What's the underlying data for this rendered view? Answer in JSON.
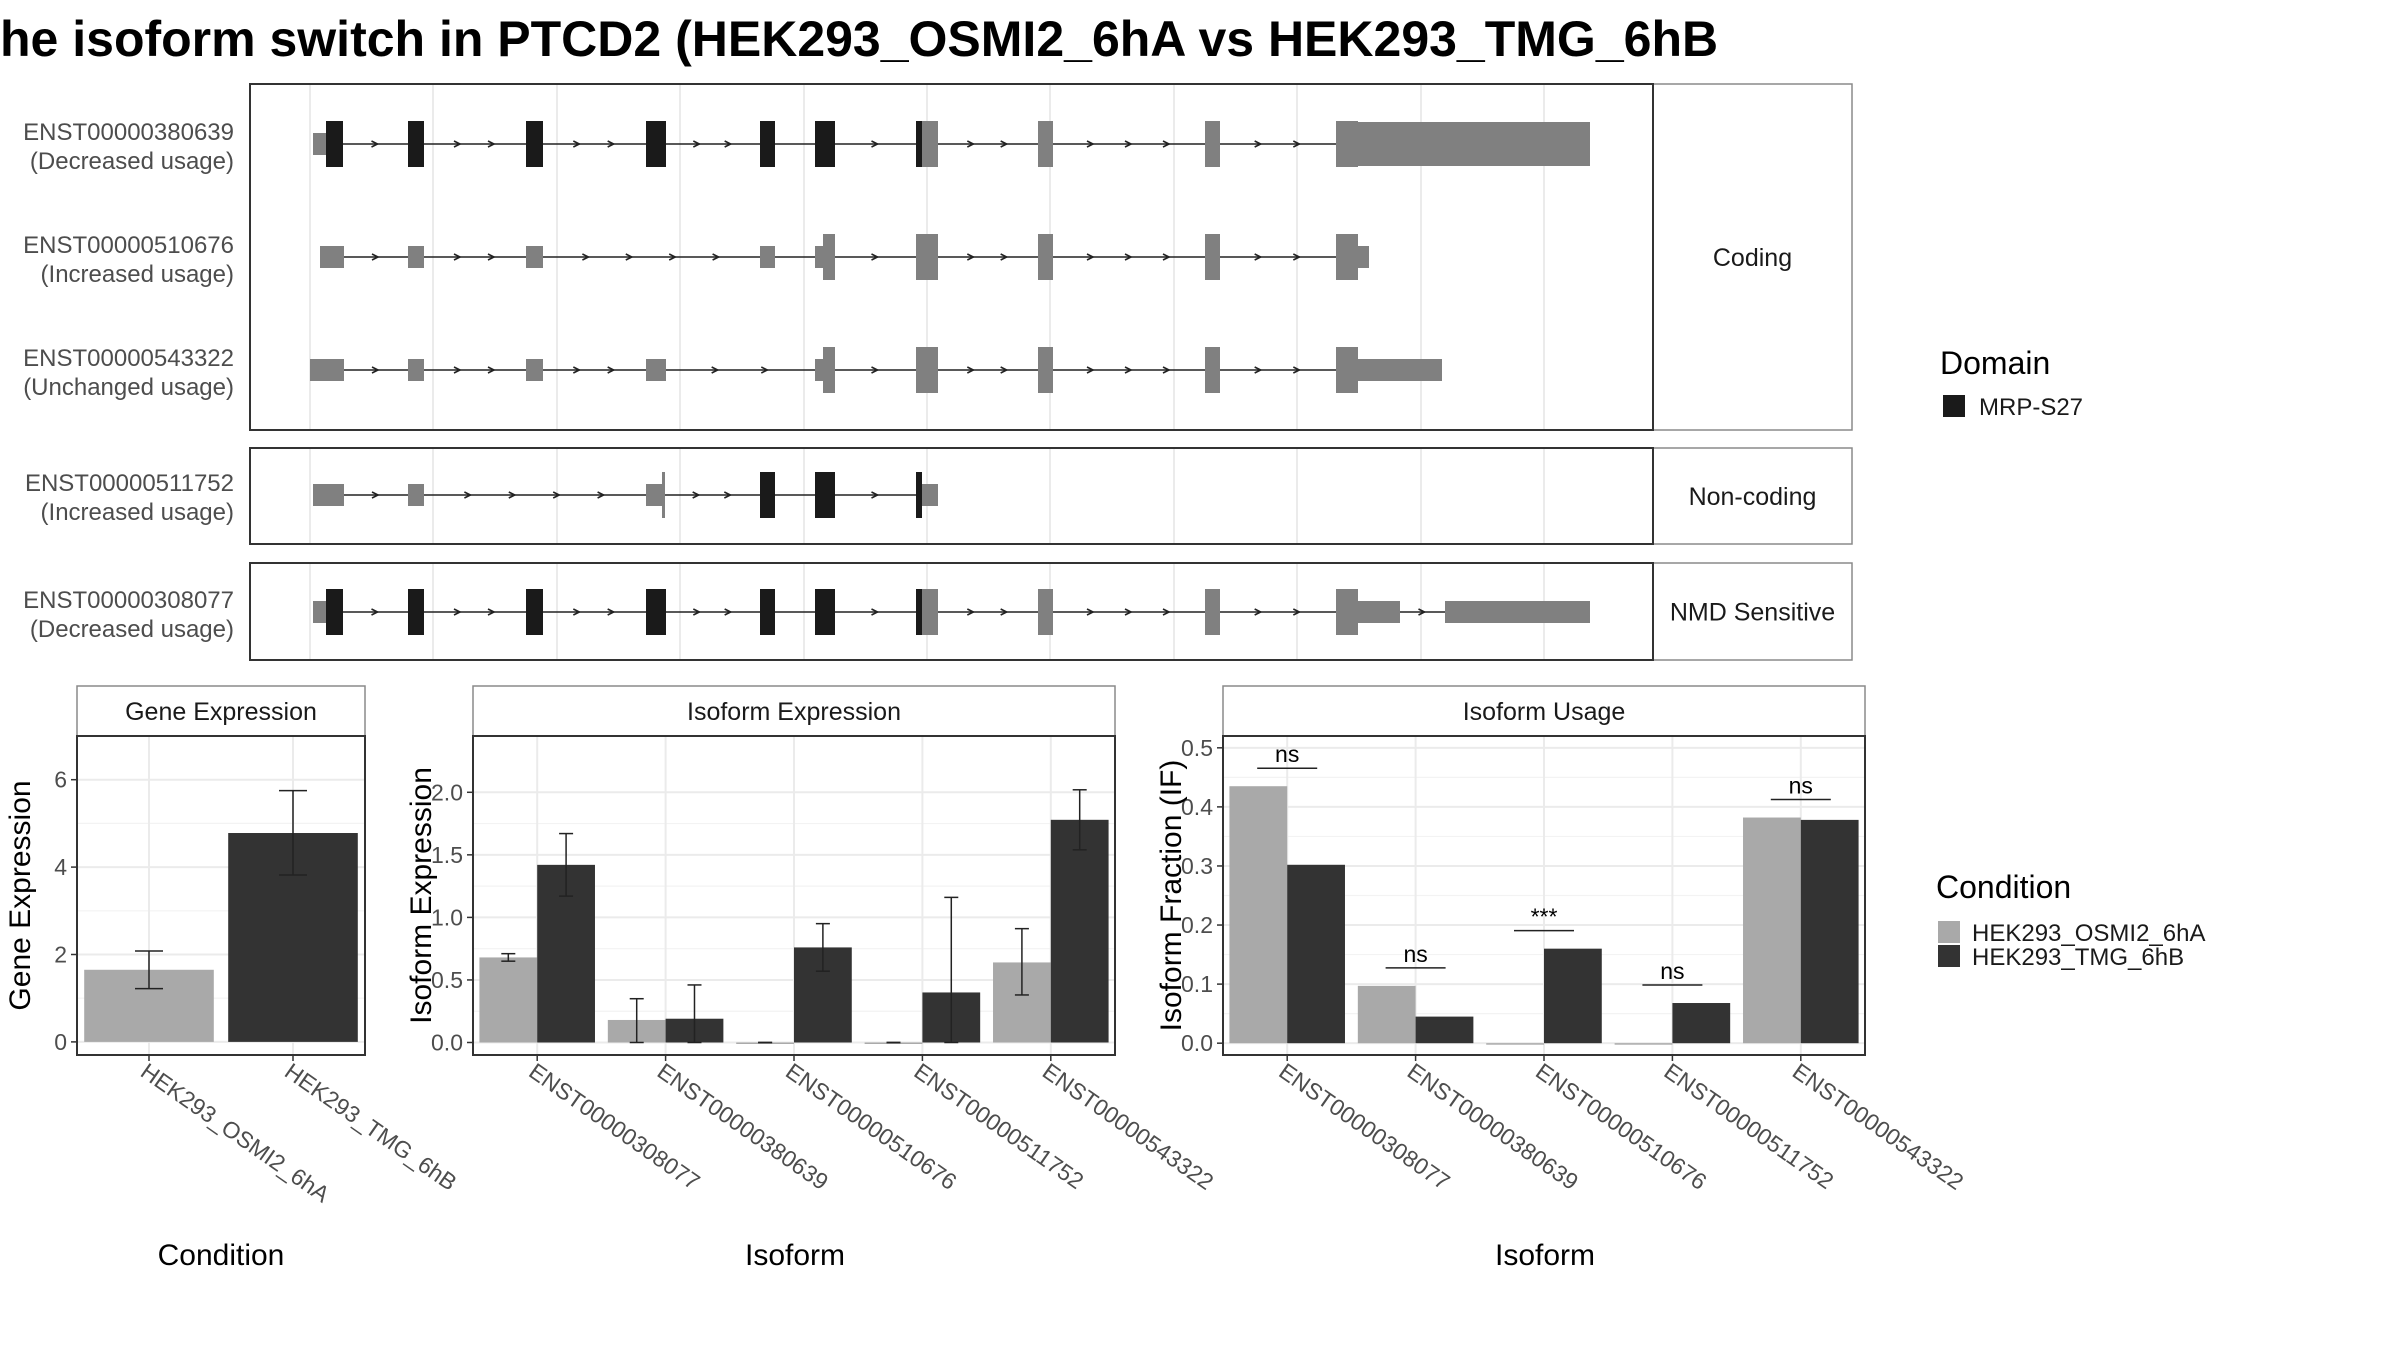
{
  "title": "he isoform switch in PTCD2 (HEK293_OSMI2_6hA vs HEK293_TMG_6hB",
  "colors": {
    "domain": "#1a1a1a",
    "utr_exon": "#808080",
    "osmi": "#a9a9a9",
    "tmg": "#333333",
    "grid": "#ebebeb",
    "strip_bg": "#ffffff"
  },
  "structure": {
    "transcripts": [
      {
        "id": "ENST00000380639",
        "usage": "(Decreased usage)",
        "panel": 0
      },
      {
        "id": "ENST00000510676",
        "usage": "(Increased usage)",
        "panel": 0
      },
      {
        "id": "ENST00000543322",
        "usage": "(Unchanged usage)",
        "panel": 0
      },
      {
        "id": "ENST00000511752",
        "usage": "(Increased usage)",
        "panel": 1
      },
      {
        "id": "ENST00000308077",
        "usage": "(Decreased usage)",
        "panel": 2
      }
    ],
    "panels": [
      "Coding",
      "Non-coding",
      "NMD Sensitive"
    ],
    "legend_title": "Domain",
    "legend_items": [
      {
        "label": "MRP-S27",
        "color": "#1a1a1a"
      }
    ]
  },
  "chart_data": [
    {
      "type": "bar",
      "strip": "Gene Expression",
      "xlabel": "Condition",
      "ylabel": "Gene Expression",
      "ylim": [
        -0.3,
        7.0
      ],
      "yticks": [
        0,
        2,
        4,
        6
      ],
      "categories": [
        "HEK293_OSMI2_6hA",
        "HEK293_TMG_6hB"
      ],
      "values": [
        1.65,
        4.78
      ],
      "err_low": [
        1.22,
        3.82
      ],
      "err_high": [
        2.08,
        5.75
      ]
    },
    {
      "type": "bar",
      "strip": "Isoform Expression",
      "xlabel": "Isoform",
      "ylabel": "Isoform Expression",
      "ylim": [
        -0.1,
        2.45
      ],
      "yticks": [
        0.0,
        0.5,
        1.0,
        1.5,
        2.0
      ],
      "categories": [
        "ENST00000308077",
        "ENST00000380639",
        "ENST00000510676",
        "ENST00000511752",
        "ENST00000543322"
      ],
      "series": [
        {
          "name": "HEK293_OSMI2_6hA",
          "values": [
            0.68,
            0.18,
            0.0,
            0.0,
            0.64
          ],
          "err_low": [
            0.65,
            0.0,
            0.0,
            0.0,
            0.38
          ],
          "err_high": [
            0.71,
            0.35,
            0.0,
            0.0,
            0.91
          ]
        },
        {
          "name": "HEK293_TMG_6hB",
          "values": [
            1.42,
            0.19,
            0.76,
            0.4,
            1.78
          ],
          "err_low": [
            1.17,
            0.0,
            0.57,
            0.0,
            1.54
          ],
          "err_high": [
            1.67,
            0.46,
            0.95,
            1.16,
            2.02
          ]
        }
      ]
    },
    {
      "type": "bar",
      "strip": "Isoform Usage",
      "xlabel": "Isoform",
      "ylabel": "Isoform Fraction (IF)",
      "ylim": [
        -0.02,
        0.52
      ],
      "yticks": [
        0.0,
        0.1,
        0.2,
        0.3,
        0.4,
        0.5
      ],
      "categories": [
        "ENST00000308077",
        "ENST00000380639",
        "ENST00000510676",
        "ENST00000511752",
        "ENST00000543322"
      ],
      "series": [
        {
          "name": "HEK293_OSMI2_6hA",
          "values": [
            0.435,
            0.097,
            0.0,
            0.0,
            0.382
          ]
        },
        {
          "name": "HEK293_TMG_6hB",
          "values": [
            0.302,
            0.045,
            0.16,
            0.068,
            0.378
          ]
        }
      ],
      "significance": [
        "ns",
        "ns",
        "***",
        "ns",
        "ns"
      ]
    }
  ],
  "condition_legend": {
    "title": "Condition",
    "items": [
      {
        "label": "HEK293_OSMI2_6hA",
        "color": "#a9a9a9"
      },
      {
        "label": "HEK293_TMG_6hB",
        "color": "#333333"
      }
    ]
  }
}
